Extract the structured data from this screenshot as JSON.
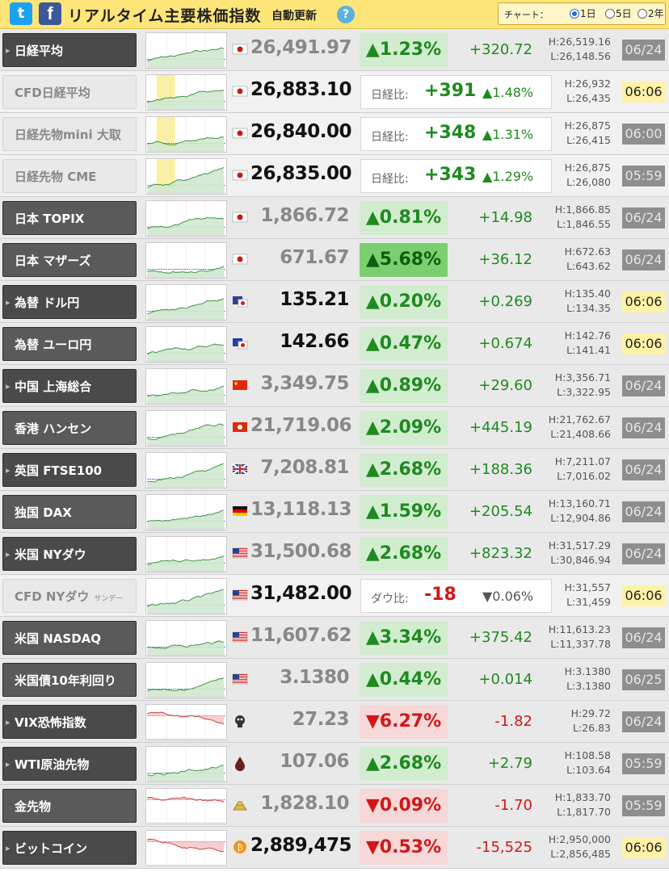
{
  "header": {
    "title": "リアルタイム主要株価指数",
    "auto_update": "自動更新",
    "help": "?",
    "twitter": "t",
    "facebook": "f",
    "chart_label": "チャート：",
    "ranges": [
      "1日",
      "5日",
      "2年"
    ],
    "selected_range": "1日"
  },
  "rows": [
    {
      "name": "日経平均",
      "type": "normal",
      "flag": "jp",
      "price": "26,491.97",
      "change": "▲1.23%",
      "diff": "+320.72",
      "high": "H:26,519.16",
      "low": "L:26,148.56",
      "date": "06/24"
    },
    {
      "name": "CFD日経平均",
      "type": "cfd",
      "flag": "jp",
      "price": "26,883.10",
      "cmp_label": "日経比:",
      "cmp_value": "+391",
      "cmp_pct": "▲1.48%",
      "high": "H:26,932",
      "low": "L:26,435",
      "date": "06:06"
    },
    {
      "name": "日経先物mini 大取",
      "type": "cfd",
      "flag": "jp",
      "price": "26,840.00",
      "cmp_label": "日経比:",
      "cmp_value": "+348",
      "cmp_pct": "▲1.31%",
      "high": "H:26,875",
      "low": "L:26,415",
      "date": "06:00"
    },
    {
      "name": "日経先物 CME",
      "type": "cfd",
      "flag": "jp",
      "price": "26,835.00",
      "cmp_label": "日経比:",
      "cmp_value": "+343",
      "cmp_pct": "▲1.29%",
      "high": "H:26,875",
      "low": "L:26,080",
      "date": "05:59"
    },
    {
      "name": "日本 TOPIX",
      "type": "normal",
      "flag": "jp",
      "price": "1,866.72",
      "change": "▲0.81%",
      "diff": "+14.98",
      "high": "H:1,866.85",
      "low": "L:1,846.55",
      "date": "06/24"
    },
    {
      "name": "日本 マザーズ",
      "type": "normal",
      "flag": "jp",
      "price": "671.67",
      "change": "▲5.68%",
      "big": true,
      "diff": "+36.12",
      "high": "H:672.63",
      "low": "L:643.62",
      "date": "06/24"
    },
    {
      "name": "為替 ドル円",
      "type": "normal",
      "flag": "fx-us",
      "price": "135.21",
      "dark": true,
      "change": "▲0.20%",
      "diff": "+0.269",
      "high": "H:135.40",
      "low": "L:134.35",
      "date": "06:06"
    },
    {
      "name": "為替 ユーロ円",
      "type": "normal",
      "flag": "fx-eu",
      "price": "142.66",
      "dark": true,
      "change": "▲0.47%",
      "diff": "+0.674",
      "high": "H:142.76",
      "low": "L:141.41",
      "date": "06:06"
    },
    {
      "name": "中国 上海総合",
      "type": "normal",
      "flag": "cn",
      "price": "3,349.75",
      "change": "▲0.89%",
      "diff": "+29.60",
      "high": "H:3,356.71",
      "low": "L:3,322.95",
      "date": "06/24"
    },
    {
      "name": "香港 ハンセン",
      "type": "normal",
      "flag": "hk",
      "price": "21,719.06",
      "change": "▲2.09%",
      "diff": "+445.19",
      "high": "H:21,762.67",
      "low": "L:21,408.66",
      "date": "06/24"
    },
    {
      "name": "英国 FTSE100",
      "type": "normal",
      "flag": "gb",
      "price": "7,208.81",
      "change": "▲2.68%",
      "diff": "+188.36",
      "high": "H:7,211.07",
      "low": "L:7,016.02",
      "date": "06/24"
    },
    {
      "name": "独国 DAX",
      "type": "normal",
      "flag": "de",
      "price": "13,118.13",
      "change": "▲1.59%",
      "diff": "+205.54",
      "high": "H:13,160.71",
      "low": "L:12,904.86",
      "date": "06/24"
    },
    {
      "name": "米国 NYダウ",
      "type": "normal",
      "flag": "us",
      "price": "31,500.68",
      "change": "▲2.68%",
      "diff": "+823.32",
      "high": "H:31,517.29",
      "low": "L:30,846.94",
      "date": "06/24"
    },
    {
      "name": "CFD NYダウ",
      "name_sub": "サンデー",
      "type": "cfd",
      "flag": "us",
      "price": "31,482.00",
      "cmp_label": "ダウ比:",
      "cmp_value": "-18",
      "cmp_pct": "▼0.06%",
      "cmp_down": true,
      "high": "H:31,557",
      "low": "L:31,459",
      "date": "06:06"
    },
    {
      "name": "米国 NASDAQ",
      "type": "normal",
      "flag": "us",
      "price": "11,607.62",
      "change": "▲3.34%",
      "diff": "+375.42",
      "high": "H:11,613.23",
      "low": "L:11,337.78",
      "date": "06/24"
    },
    {
      "name": "米国債10年利回り",
      "type": "normal",
      "flag": "us",
      "price": "3.1380",
      "change": "▲0.44%",
      "diff": "+0.014",
      "high": "H:3.1380",
      "low": "L:3.1380",
      "date": "06/25"
    },
    {
      "name": "VIX恐怖指数",
      "type": "normal",
      "flag": "vix",
      "price": "27.23",
      "change": "▼6.27%",
      "down": true,
      "diff": "-1.82",
      "high": "H:29.72",
      "low": "L:26.83",
      "date": "06/24"
    },
    {
      "name": "WTI原油先物",
      "type": "normal",
      "flag": "oil",
      "price": "107.06",
      "change": "▲2.68%",
      "diff": "+2.79",
      "high": "H:108.58",
      "low": "L:103.64",
      "date": "05:59"
    },
    {
      "name": "金先物",
      "type": "normal",
      "flag": "gold",
      "price": "1,828.10",
      "change": "▼0.09%",
      "down": true,
      "diff": "-1.70",
      "high": "H:1,833.70",
      "low": "L:1,817.70",
      "date": "05:59"
    },
    {
      "name": "ビットコイン",
      "type": "normal",
      "flag": "btc",
      "price": "2,889,475",
      "dark": true,
      "change": "▼0.53%",
      "down": true,
      "diff": "-15,525",
      "high": "H:2,950,000",
      "low": "L:2,856,485",
      "date": "06:06"
    }
  ]
}
